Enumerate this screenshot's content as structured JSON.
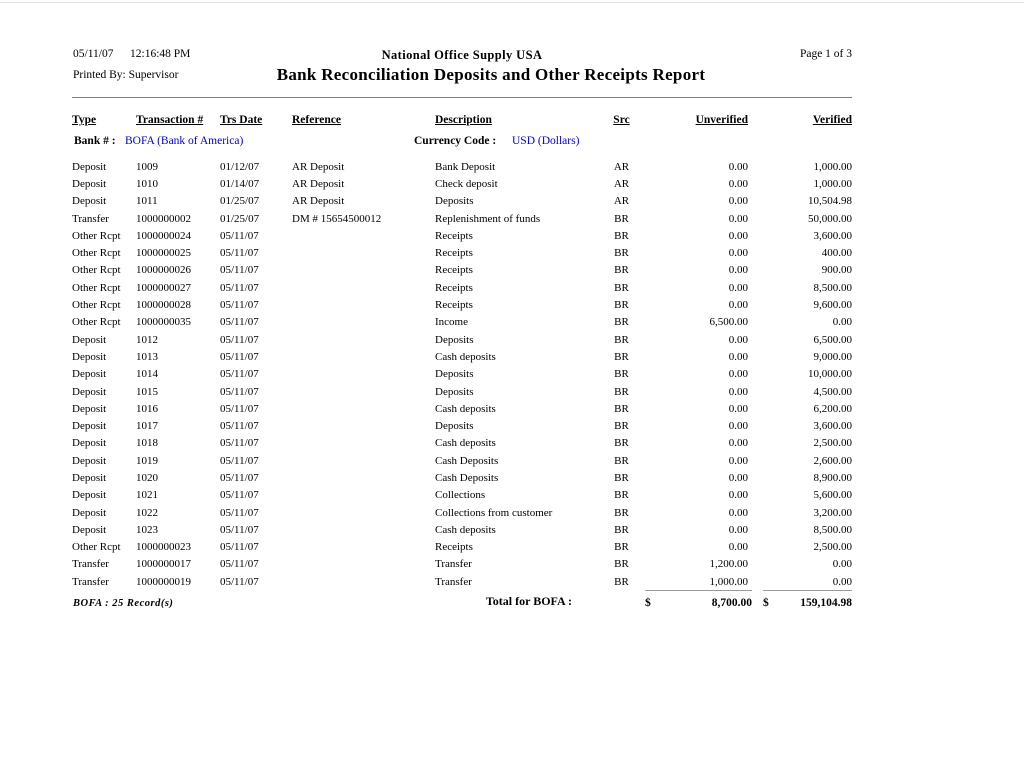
{
  "header": {
    "date": "05/11/07",
    "time": "12:16:48 PM",
    "company": "National Office Supply USA",
    "page": "Page 1 of 3",
    "printed_by": "Printed By: Supervisor",
    "title": "Bank Reconciliation Deposits and Other Receipts Report"
  },
  "table": {
    "columns": {
      "type": "Type",
      "transaction": "Transaction #",
      "trs_date": "Trs Date",
      "reference": "Reference",
      "description": "Description",
      "src": "Src",
      "unverified": "Unverified",
      "verified": "Verified"
    },
    "bank": {
      "label": "Bank # :",
      "value": "BOFA (Bank of America)",
      "currency_label": "Currency Code :",
      "currency_value": "USD (Dollars)"
    },
    "rows": [
      {
        "type": "Deposit",
        "txn": "1009",
        "date": "01/12/07",
        "ref": "AR Deposit",
        "desc": "Bank Deposit",
        "src": "AR",
        "unverified": "0.00",
        "verified": "1,000.00"
      },
      {
        "type": "Deposit",
        "txn": "1010",
        "date": "01/14/07",
        "ref": "AR Deposit",
        "desc": "Check deposit",
        "src": "AR",
        "unverified": "0.00",
        "verified": "1,000.00"
      },
      {
        "type": "Deposit",
        "txn": "1011",
        "date": "01/25/07",
        "ref": "AR Deposit",
        "desc": "Deposits",
        "src": "AR",
        "unverified": "0.00",
        "verified": "10,504.98"
      },
      {
        "type": "Transfer",
        "txn": "1000000002",
        "date": "01/25/07",
        "ref": "DM # 15654500012",
        "desc": "Replenishment of funds",
        "src": "BR",
        "unverified": "0.00",
        "verified": "50,000.00"
      },
      {
        "type": "Other Rcpt",
        "txn": "1000000024",
        "date": "05/11/07",
        "ref": "",
        "desc": "Receipts",
        "src": "BR",
        "unverified": "0.00",
        "verified": "3,600.00"
      },
      {
        "type": "Other Rcpt",
        "txn": "1000000025",
        "date": "05/11/07",
        "ref": "",
        "desc": "Receipts",
        "src": "BR",
        "unverified": "0.00",
        "verified": "400.00"
      },
      {
        "type": "Other Rcpt",
        "txn": "1000000026",
        "date": "05/11/07",
        "ref": "",
        "desc": "Receipts",
        "src": "BR",
        "unverified": "0.00",
        "verified": "900.00"
      },
      {
        "type": "Other Rcpt",
        "txn": "1000000027",
        "date": "05/11/07",
        "ref": "",
        "desc": "Receipts",
        "src": "BR",
        "unverified": "0.00",
        "verified": "8,500.00"
      },
      {
        "type": "Other Rcpt",
        "txn": "1000000028",
        "date": "05/11/07",
        "ref": "",
        "desc": "Receipts",
        "src": "BR",
        "unverified": "0.00",
        "verified": "9,600.00"
      },
      {
        "type": "Other Rcpt",
        "txn": "1000000035",
        "date": "05/11/07",
        "ref": "",
        "desc": "Income",
        "src": "BR",
        "unverified": "6,500.00",
        "verified": "0.00"
      },
      {
        "type": "Deposit",
        "txn": "1012",
        "date": "05/11/07",
        "ref": "",
        "desc": "Deposits",
        "src": "BR",
        "unverified": "0.00",
        "verified": "6,500.00"
      },
      {
        "type": "Deposit",
        "txn": "1013",
        "date": "05/11/07",
        "ref": "",
        "desc": "Cash deposits",
        "src": "BR",
        "unverified": "0.00",
        "verified": "9,000.00"
      },
      {
        "type": "Deposit",
        "txn": "1014",
        "date": "05/11/07",
        "ref": "",
        "desc": "Deposits",
        "src": "BR",
        "unverified": "0.00",
        "verified": "10,000.00"
      },
      {
        "type": "Deposit",
        "txn": "1015",
        "date": "05/11/07",
        "ref": "",
        "desc": "Deposits",
        "src": "BR",
        "unverified": "0.00",
        "verified": "4,500.00"
      },
      {
        "type": "Deposit",
        "txn": "1016",
        "date": "05/11/07",
        "ref": "",
        "desc": "Cash deposits",
        "src": "BR",
        "unverified": "0.00",
        "verified": "6,200.00"
      },
      {
        "type": "Deposit",
        "txn": "1017",
        "date": "05/11/07",
        "ref": "",
        "desc": "Deposits",
        "src": "BR",
        "unverified": "0.00",
        "verified": "3,600.00"
      },
      {
        "type": "Deposit",
        "txn": "1018",
        "date": "05/11/07",
        "ref": "",
        "desc": "Cash deposits",
        "src": "BR",
        "unverified": "0.00",
        "verified": "2,500.00"
      },
      {
        "type": "Deposit",
        "txn": "1019",
        "date": "05/11/07",
        "ref": "",
        "desc": "Cash Deposits",
        "src": "BR",
        "unverified": "0.00",
        "verified": "2,600.00"
      },
      {
        "type": "Deposit",
        "txn": "1020",
        "date": "05/11/07",
        "ref": "",
        "desc": "Cash Deposits",
        "src": "BR",
        "unverified": "0.00",
        "verified": "8,900.00"
      },
      {
        "type": "Deposit",
        "txn": "1021",
        "date": "05/11/07",
        "ref": "",
        "desc": "Collections",
        "src": "BR",
        "unverified": "0.00",
        "verified": "5,600.00"
      },
      {
        "type": "Deposit",
        "txn": "1022",
        "date": "05/11/07",
        "ref": "",
        "desc": "Collections from customer",
        "src": "BR",
        "unverified": "0.00",
        "verified": "3,200.00"
      },
      {
        "type": "Deposit",
        "txn": "1023",
        "date": "05/11/07",
        "ref": "",
        "desc": "Cash deposits",
        "src": "BR",
        "unverified": "0.00",
        "verified": "8,500.00"
      },
      {
        "type": "Other Rcpt",
        "txn": "1000000023",
        "date": "05/11/07",
        "ref": "",
        "desc": "Receipts",
        "src": "BR",
        "unverified": "0.00",
        "verified": "2,500.00"
      },
      {
        "type": "Transfer",
        "txn": "1000000017",
        "date": "05/11/07",
        "ref": "",
        "desc": "Transfer",
        "src": "BR",
        "unverified": "1,200.00",
        "verified": "0.00"
      },
      {
        "type": "Transfer",
        "txn": "1000000019",
        "date": "05/11/07",
        "ref": "",
        "desc": "Transfer",
        "src": "BR",
        "unverified": "1,000.00",
        "verified": "0.00"
      }
    ],
    "totals": {
      "records_note": "BOFA : 25 Record(s)",
      "label": "Total for BOFA :",
      "currency_symbol": "$",
      "unverified": "8,700.00",
      "verified": "159,104.98"
    }
  },
  "colors": {
    "link_blue": "#0000CC",
    "rule_gray": "#7d7d7d"
  }
}
